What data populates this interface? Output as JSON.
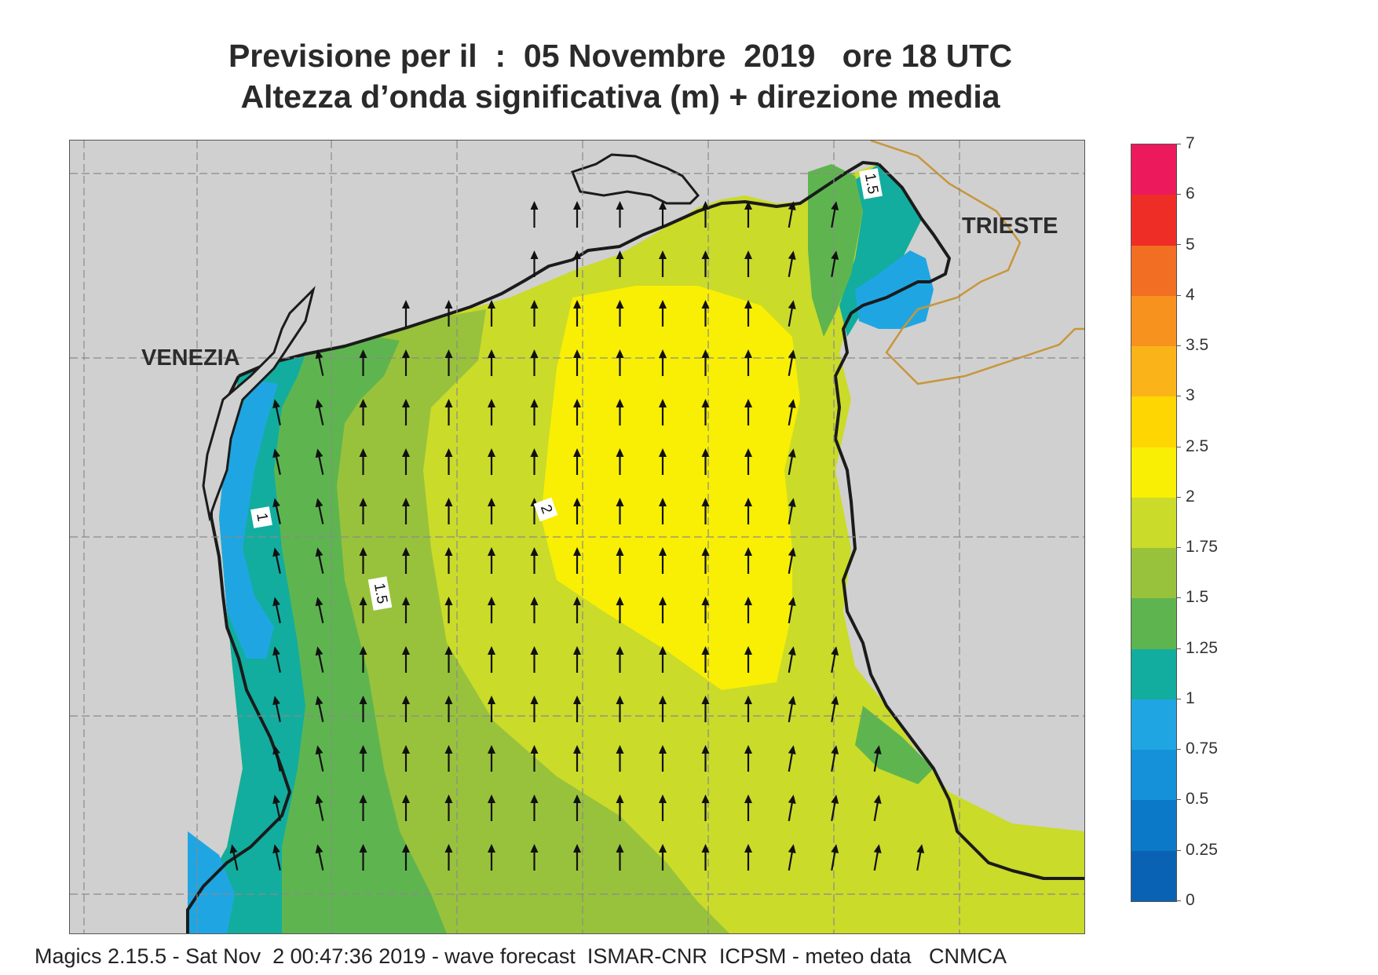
{
  "title": {
    "line1": "Previsione per il  :  05 Novembre  2019   ore 18 UTC",
    "line2": "Altezza d’onda significativa (m) + direzione media"
  },
  "map": {
    "cities": [
      "VENEZIA",
      "TRIESTE"
    ],
    "contour_labels": [
      "1.5",
      "1",
      "2",
      "1.5"
    ],
    "colors": {
      "land": "#d0d0d0",
      "coast": "#1b1b1b",
      "border": "#c8963c",
      "grid": "#8a8a8a",
      "arrow": "#111111"
    },
    "arrow_direction": "north"
  },
  "legend": {
    "ticks": [
      "0",
      "0.25",
      "0.5",
      "0.75",
      "1",
      "1.25",
      "1.5",
      "1.75",
      "2",
      "2.5",
      "3",
      "3.5",
      "4",
      "5",
      "6",
      "7"
    ],
    "colors": [
      "#0a62b4",
      "#0c78c8",
      "#1591da",
      "#1fa6e2",
      "#12ad9f",
      "#5eb54f",
      "#99c23c",
      "#cadb2a",
      "#f8ef04",
      "#fed602",
      "#fab419",
      "#f7921e",
      "#f26e22",
      "#ee2d27",
      "#ec1a5c"
    ]
  },
  "footer": "Magics 2.15.5 - Sat Nov  2 00:47:36 2019 - wave forecast  ISMAR-CNR  ICPSM - meteo data   CNMCA"
}
